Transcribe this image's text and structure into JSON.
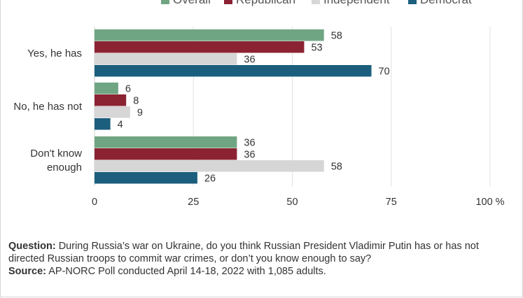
{
  "chart_data": {
    "type": "bar",
    "orientation": "horizontal",
    "title": "",
    "xlabel": "",
    "ylabel": "",
    "categories": [
      "Yes, he has",
      "No, he has not",
      "Don't know enough"
    ],
    "series": [
      {
        "name": "Overall",
        "color": "#70a583",
        "values": [
          58,
          6,
          36
        ]
      },
      {
        "name": "Republican",
        "color": "#8b2332",
        "values": [
          53,
          8,
          36
        ]
      },
      {
        "name": "Independent",
        "color": "#d6d6d6",
        "values": [
          36,
          9,
          58
        ]
      },
      {
        "name": "Democrat",
        "color": "#1b5e7d",
        "values": [
          70,
          4,
          26
        ]
      }
    ],
    "xlim": [
      0,
      100
    ],
    "xticks": [
      0,
      25,
      50,
      75,
      100
    ],
    "xtick_labels": [
      "0",
      "25",
      "50",
      "75",
      "100 %"
    ],
    "grid": true,
    "legend_position": "top"
  },
  "notes": {
    "question_label": "Question:",
    "question_text": "During Russia’s war on Ukraine, do you think Russian President Vladimir Putin has or has not directed Russian troops to commit war crimes, or don’t you know enough to say?",
    "source_label": "Source:",
    "source_text": "AP-NORC Poll conducted April 14-18, 2022 with 1,085 adults."
  }
}
